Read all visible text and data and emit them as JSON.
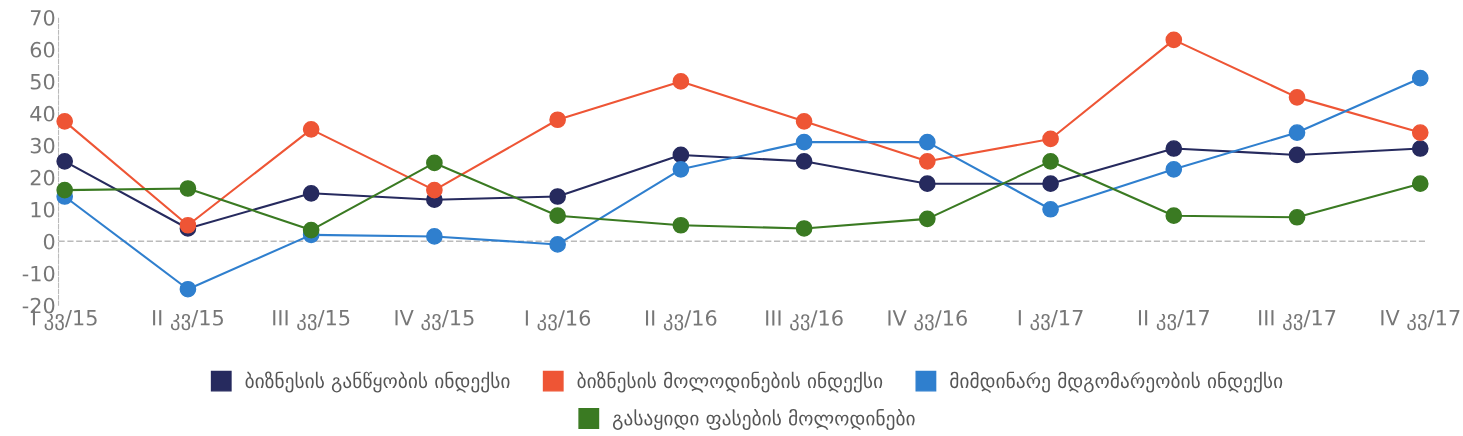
{
  "chart_data": {
    "type": "line",
    "categories": [
      "I კვ/15",
      "II კვ/15",
      "III კვ/15",
      "IV კვ/15",
      "I კვ/16",
      "II კვ/16",
      "III კვ/16",
      "IV კვ/16",
      "I კვ/17",
      "II კვ/17",
      "III კვ/17",
      "IV კვ/17"
    ],
    "series": [
      {
        "name": "ბიზნესის განწყობის ინდექსი",
        "color": "#262a5e",
        "values": [
          25,
          4,
          15,
          13,
          14,
          27,
          25,
          18,
          18,
          29,
          27,
          29
        ]
      },
      {
        "name": "ბიზნესის მოლოდინების ინდექსი",
        "color": "#ee5535",
        "values": [
          37.5,
          5,
          35,
          16,
          38,
          50,
          37.5,
          25,
          32,
          63,
          45,
          34
        ]
      },
      {
        "name": "მიმდინარე მდგომარეობის ინდექსი",
        "color": "#2f7fce",
        "values": [
          14,
          -15,
          2,
          1.5,
          -1,
          22.5,
          31,
          31,
          10,
          22.5,
          34,
          51
        ]
      },
      {
        "name": "გასაყიდი ფასების მოლოდინები",
        "color": "#3a7a22",
        "values": [
          16,
          16.5,
          3.5,
          24.5,
          8,
          5,
          4,
          7,
          25,
          8,
          7.5,
          18
        ]
      }
    ],
    "ylim": [
      -20,
      70
    ],
    "yticks": [
      -20,
      -10,
      0,
      10,
      20,
      30,
      40,
      50,
      60,
      70
    ],
    "ref_lines": [
      {
        "axis": "y",
        "value": 0,
        "color": "#bbbbbb",
        "line_style": "dashed"
      }
    ],
    "grid": false,
    "legend": "bottom",
    "marker": "circle",
    "line_style": "solid"
  }
}
